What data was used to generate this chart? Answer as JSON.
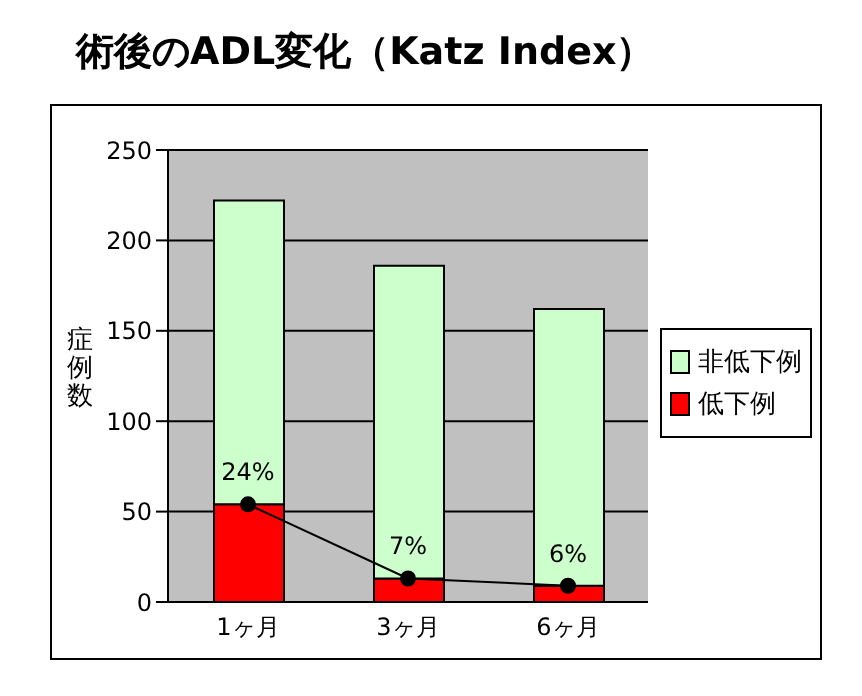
{
  "chart_data": {
    "type": "bar",
    "title": "術後のADL変化（Katz Index）",
    "ylabel": "症例数",
    "categories": [
      "1ヶ月",
      "3ヶ月",
      "6ヶ月"
    ],
    "stacked": true,
    "series": [
      {
        "name": "低下例",
        "color": "#ff0000",
        "values": [
          54,
          13,
          9
        ]
      },
      {
        "name": "非低下例",
        "color": "#ccffcc",
        "values": [
          168,
          173,
          153
        ]
      },
      {
        "type": "line",
        "color": "#000000",
        "values": [
          54,
          13,
          9
        ]
      }
    ],
    "annotations": [
      {
        "text": "24%",
        "x": "1ヶ月",
        "y": 54
      },
      {
        "text": "7%",
        "x": "3ヶ月",
        "y": 13
      },
      {
        "text": "6%",
        "x": "6ヶ月",
        "y": 9
      }
    ],
    "ylim": [
      0,
      250
    ],
    "yticks": [
      0,
      50,
      100,
      150,
      200,
      250
    ],
    "grid": "y",
    "legend": "right",
    "marker": "circle"
  }
}
